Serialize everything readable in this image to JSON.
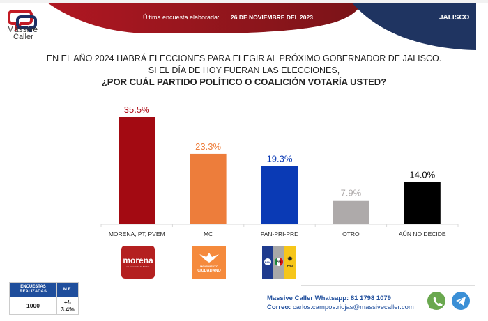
{
  "header": {
    "brand_line1": "Massive",
    "brand_line2": "Caller",
    "survey_label": "Última encuesta elaborada:",
    "survey_date": "26 DE NOVIEMBRE DEL 2023",
    "state": "JALISCO",
    "colors": {
      "red": "#a8161f",
      "navy": "#1f3461"
    }
  },
  "question": {
    "line1": "EN EL AÑO 2024 HABRÁ ELECCIONES PARA ELEGIR AL PRÓXIMO GOBERNADOR DE JALISCO.",
    "line2": "SI EL DÍA DE HOY FUERAN LAS ELECCIONES,",
    "line3": "¿POR CUÁL PARTIDO POLÍTICO O COALICIÓN VOTARÍA USTED?"
  },
  "chart_data": {
    "type": "bar",
    "title": "¿POR CUÁL PARTIDO POLÍTICO O COALICIÓN VOTARÍA USTED?",
    "xlabel": "",
    "ylabel": "",
    "ylim": [
      0,
      35.5
    ],
    "grid": false,
    "categories": [
      "MORENA, PT, PVEM",
      "MC",
      "PAN-PRI-PRD",
      "OTRO",
      "AÚN NO DECIDE"
    ],
    "values": [
      35.5,
      23.3,
      19.3,
      7.9,
      14.0
    ],
    "data_labels": [
      "35.5%",
      "23.3%",
      "19.3%",
      "7.9%",
      "14.0%"
    ],
    "bar_colors": [
      "#a30a12",
      "#ed7d3b",
      "#0a3ab5",
      "#aeaaaa",
      "#000000"
    ],
    "label_colors": [
      "#b0101a",
      "#ed7d3b",
      "#0a3ab5",
      "#aeaaaa",
      "#111111"
    ]
  },
  "party_logos": {
    "morena": {
      "name": "morena",
      "tagline": "La esperanza de México",
      "color": "#b42020"
    },
    "mc": {
      "line1": "MOVIMIENTO",
      "line2": "CIUDADANO",
      "color": "#f58a3c"
    },
    "pan_pri_prd": {
      "pan": "PAN",
      "pri": "PRI",
      "prd": "PRD",
      "colors": [
        "#1f3b8e",
        "#a8a8a8",
        "#f6c61a"
      ]
    }
  },
  "sample_table": {
    "headers": [
      "ENCUESTAS REALIZADAS",
      "M.E."
    ],
    "values": [
      "1000",
      "+/- 3.4%"
    ]
  },
  "contact": {
    "whatsapp_label": "Massive Caller Whatsapp: 81 1798 1079",
    "email_label": "Correo:",
    "email": "carlos.campos.riojas@massivecaller.com",
    "icons": [
      "whatsapp-icon",
      "telegram-icon"
    ]
  }
}
